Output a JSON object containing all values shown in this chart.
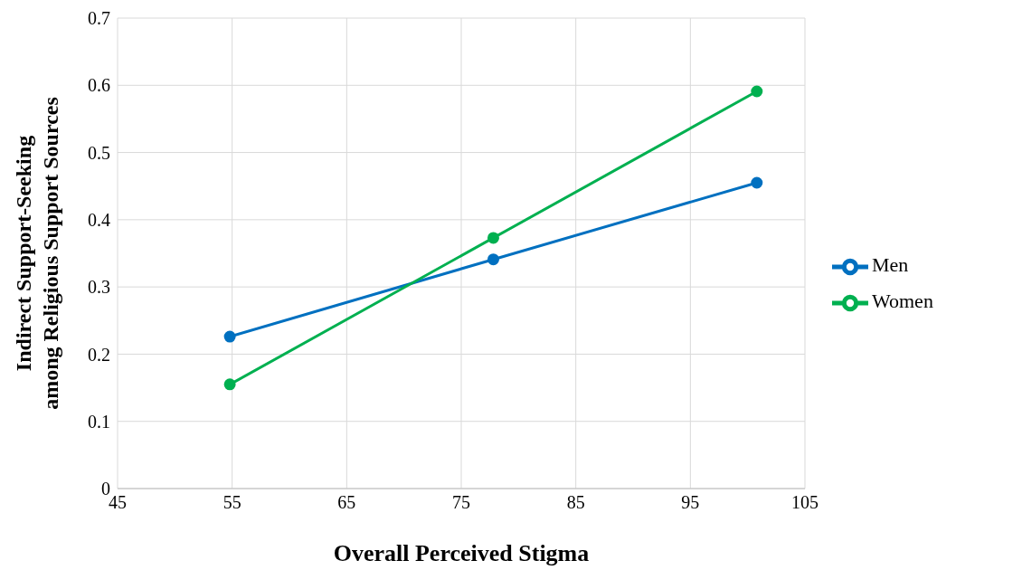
{
  "chart_data": {
    "type": "line",
    "xlabel": "Overall Perceived Stigma",
    "ylabel": "Indirect Support-Seeking\namong Religious Support Sources",
    "x": [
      54.8,
      77.8,
      100.8
    ],
    "series": [
      {
        "name": "Men",
        "color": "#0070c0",
        "values": [
          0.226,
          0.341,
          0.455
        ]
      },
      {
        "name": "Women",
        "color": "#00b050",
        "values": [
          0.155,
          0.373,
          0.591
        ]
      }
    ],
    "xlim": [
      45,
      105
    ],
    "xticks": [
      45,
      55,
      65,
      75,
      85,
      95,
      105
    ],
    "ylim": [
      0,
      0.7
    ],
    "yticks": [
      0,
      0.1,
      0.2,
      0.3,
      0.4,
      0.5,
      0.6,
      0.7
    ],
    "grid": true,
    "legend": "right",
    "marker": "circle",
    "line_style": "solid"
  }
}
